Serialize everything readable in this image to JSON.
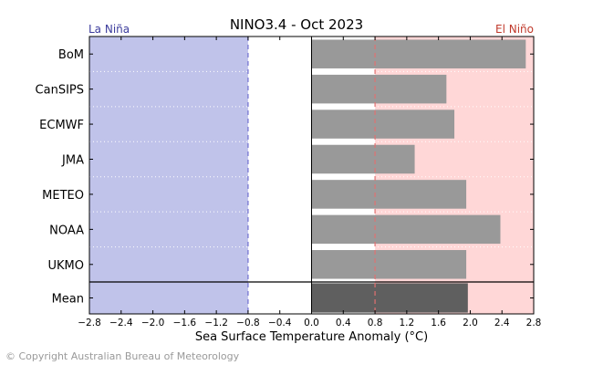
{
  "chart_data": {
    "type": "bar",
    "orientation": "horizontal",
    "title": "NINO3.4 - Oct 2023",
    "xlabel": "Sea Surface Temperature Anomaly (°C)",
    "ylabel": "",
    "xlim": [
      -2.8,
      2.8
    ],
    "xticks": [
      "−2.8",
      "−2.4",
      "−2.0",
      "−1.6",
      "−1.2",
      "−0.8",
      "−0.4",
      "0.0",
      "0.4",
      "0.8",
      "1.2",
      "1.6",
      "2.0",
      "2.4",
      "2.8"
    ],
    "categories": [
      "BoM",
      "CanSIPS",
      "ECMWF",
      "JMA",
      "METEO",
      "NOAA",
      "UKMO",
      "Mean"
    ],
    "values": [
      2.7,
      1.7,
      1.8,
      1.3,
      1.95,
      2.38,
      1.95,
      1.97
    ],
    "thresholds": {
      "la_nina": -0.8,
      "el_nino": 0.8
    },
    "region_labels": {
      "la_nina": "La Niña",
      "el_nino": "El Niño"
    },
    "colors": {
      "la_nina_region": "#c0c3ea",
      "el_nino_region": "#ffd7d7",
      "model_bar": "#999999",
      "mean_bar": "#5f5f5f",
      "la_nina_line": "#6f6fd0",
      "el_nino_line": "#e07070",
      "la_nina_text": "#3c3c9c",
      "el_nino_text": "#c0392b"
    },
    "grid": true
  },
  "footer": {
    "copyright": "© Copyright Australian Bureau of Meteorology"
  }
}
